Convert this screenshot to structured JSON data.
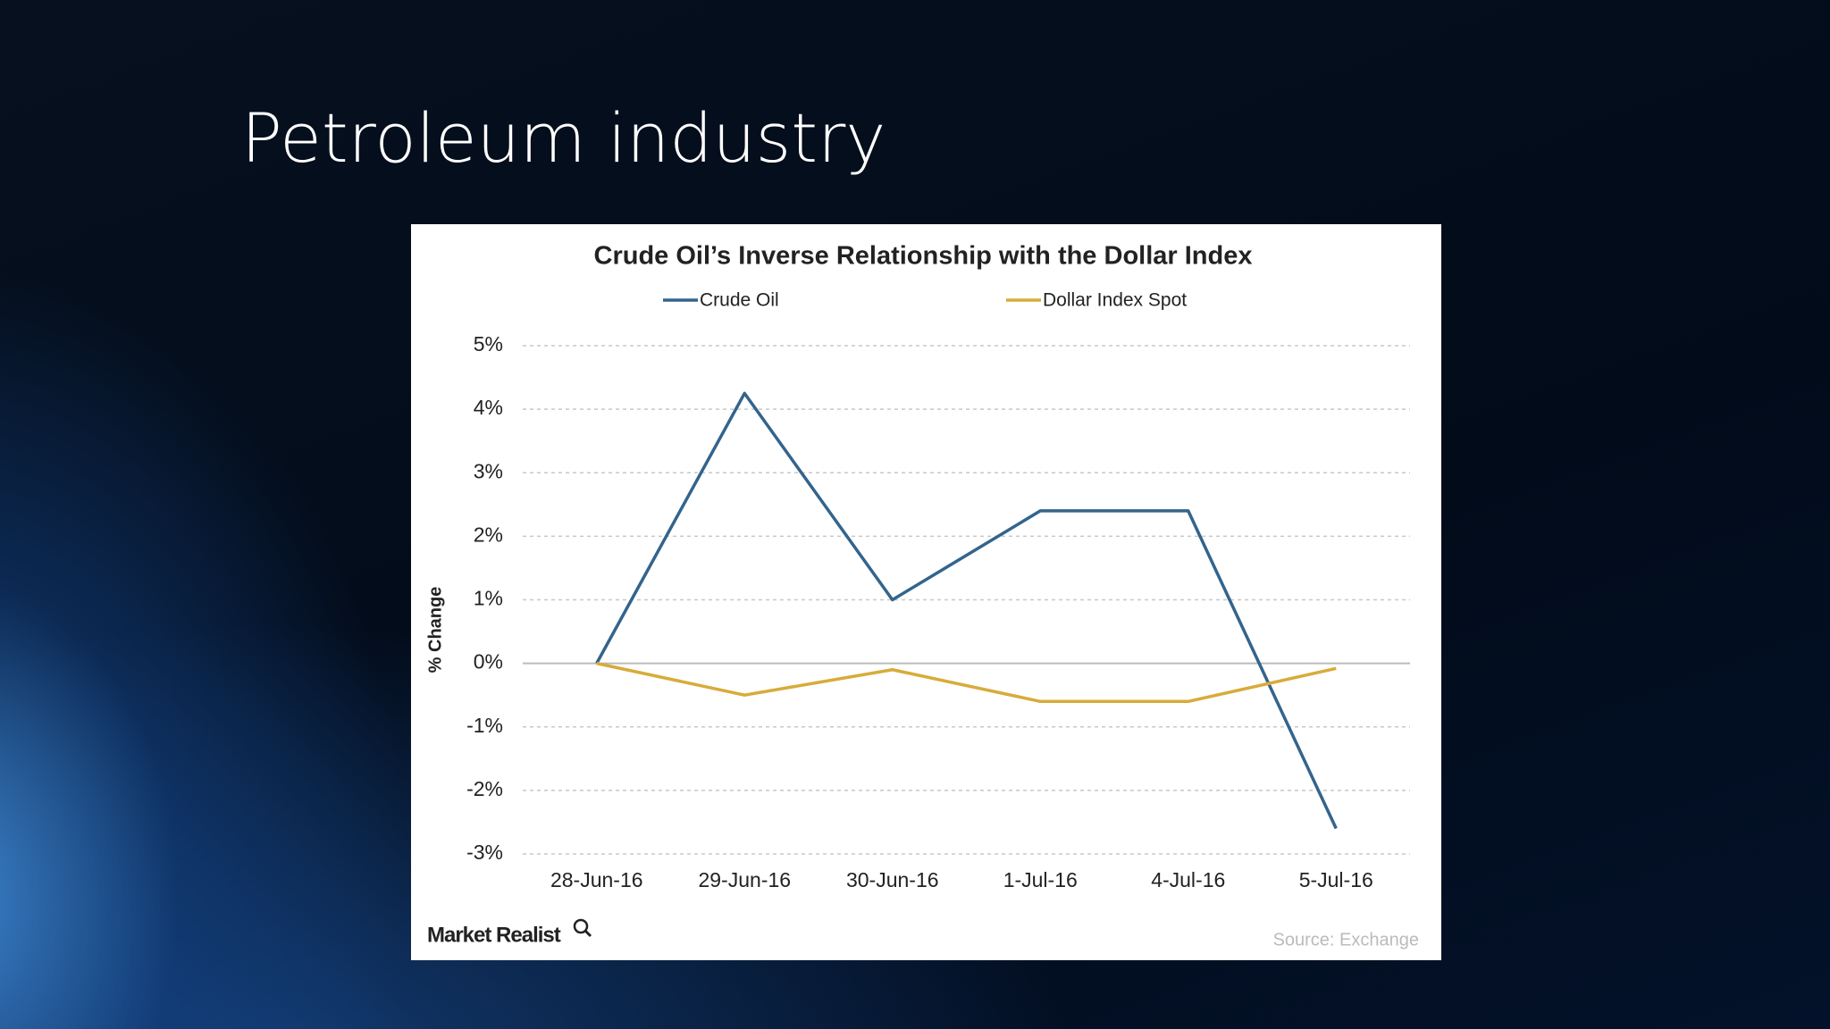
{
  "slide": {
    "title": "Petroleum industry"
  },
  "chart_data": {
    "type": "line",
    "title": "Crude Oil’s Inverse Relationship with the Dollar Index",
    "y_label": "% Change",
    "categories": [
      "28-Jun-16",
      "29-Jun-16",
      "30-Jun-16",
      "1-Jul-16",
      "4-Jul-16",
      "5-Jul-16"
    ],
    "series": [
      {
        "name": "Crude Oil",
        "color": "#33648c",
        "values": [
          0,
          4.25,
          1.0,
          2.4,
          2.4,
          -2.6
        ]
      },
      {
        "name": "Dollar Index Spot",
        "color": "#d8ab3a",
        "values": [
          0,
          -0.5,
          -0.1,
          -0.6,
          -0.6,
          -0.08
        ]
      }
    ],
    "ylim": [
      -3,
      5
    ],
    "yticks": [
      {
        "value": -3,
        "label": "-3%"
      },
      {
        "value": -2,
        "label": "-2%"
      },
      {
        "value": -1,
        "label": "-1%"
      },
      {
        "value": 0,
        "label": "0%"
      },
      {
        "value": 1,
        "label": "1%"
      },
      {
        "value": 2,
        "label": "2%"
      },
      {
        "value": 3,
        "label": "3%"
      },
      {
        "value": 4,
        "label": "4%"
      },
      {
        "value": 5,
        "label": "5%"
      }
    ],
    "grid": true,
    "legend": "top",
    "brand": "Market Realist",
    "source": "Source: Exchange"
  }
}
